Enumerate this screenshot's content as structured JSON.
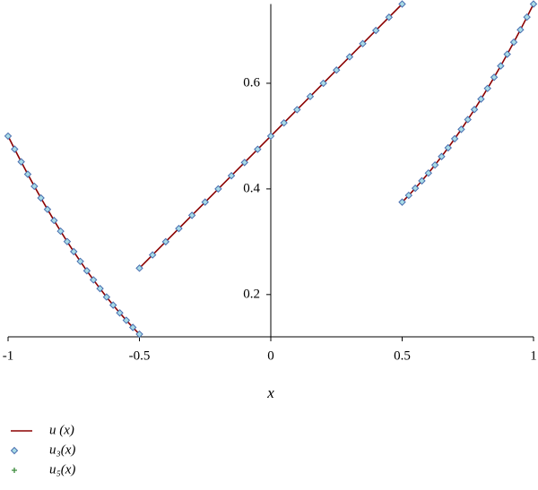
{
  "chart_data": {
    "type": "line",
    "xlabel": "x",
    "xlim": [
      -1,
      1
    ],
    "xticks": [
      -1,
      -0.5,
      0,
      0.5,
      1
    ],
    "ylim": [
      0.12,
      0.75
    ],
    "yticks": [
      0.2,
      0.4,
      0.6
    ],
    "x": [
      -1,
      -0.975,
      -0.95,
      -0.925,
      -0.9,
      -0.875,
      -0.85,
      -0.825,
      -0.8,
      -0.775,
      -0.75,
      -0.725,
      -0.7,
      -0.675,
      -0.65,
      -0.625,
      -0.6,
      -0.575,
      -0.55,
      -0.525,
      -0.5,
      -0.5,
      -0.5,
      -0.45,
      -0.4,
      -0.35,
      -0.3,
      -0.25,
      -0.2,
      -0.15,
      -0.1,
      -0.05,
      0,
      0.05,
      0.1,
      0.15,
      0.2,
      0.25,
      0.3,
      0.35,
      0.4,
      0.45,
      0.5,
      0.5,
      0.5,
      0.525,
      0.55,
      0.575,
      0.6,
      0.625,
      0.65,
      0.675,
      0.7,
      0.725,
      0.75,
      0.775,
      0.8,
      0.825,
      0.85,
      0.875,
      0.9,
      0.925,
      0.95,
      0.975,
      1
    ],
    "series": [
      {
        "name": "u (x)",
        "marker": "line",
        "color": "#8b0000",
        "values": [
          0.5,
          0.4753,
          0.4513,
          0.4278,
          0.405,
          0.3828,
          0.3613,
          0.3403,
          0.32,
          0.3003,
          0.2813,
          0.2628,
          0.245,
          0.2278,
          0.2113,
          0.1953,
          0.18,
          0.1653,
          0.1513,
          0.1378,
          0.125,
          null,
          0.25,
          0.275,
          0.3,
          0.325,
          0.35,
          0.375,
          0.4,
          0.425,
          0.45,
          0.475,
          0.5,
          0.525,
          0.55,
          0.575,
          0.6,
          0.625,
          0.65,
          0.675,
          0.7,
          0.725,
          0.75,
          null,
          0.375,
          0.3878,
          0.4013,
          0.4153,
          0.43,
          0.4453,
          0.4613,
          0.4778,
          0.495,
          0.5128,
          0.5313,
          0.5503,
          0.57,
          0.5903,
          0.6113,
          0.6328,
          0.655,
          0.6778,
          0.7013,
          0.7253,
          0.75
        ]
      },
      {
        "name": "u₃(x)",
        "marker": "diamond",
        "color": "#4a6fb0",
        "values": [
          0.5,
          0.4753,
          0.4513,
          0.4278,
          0.405,
          0.3828,
          0.3613,
          0.3403,
          0.32,
          0.3003,
          0.2813,
          0.2628,
          0.245,
          0.2278,
          0.2113,
          0.1953,
          0.18,
          0.1653,
          0.1513,
          0.1378,
          0.125,
          null,
          0.25,
          0.275,
          0.3,
          0.325,
          0.35,
          0.375,
          0.4,
          0.425,
          0.45,
          0.475,
          0.5,
          0.525,
          0.55,
          0.575,
          0.6,
          0.625,
          0.65,
          0.675,
          0.7,
          0.725,
          0.75,
          null,
          0.375,
          0.3878,
          0.4013,
          0.4153,
          0.43,
          0.4453,
          0.4613,
          0.4778,
          0.495,
          0.5128,
          0.5313,
          0.5503,
          0.57,
          0.5903,
          0.6113,
          0.6328,
          0.655,
          0.6778,
          0.7013,
          0.7253,
          0.75
        ]
      },
      {
        "name": "u₅(x)",
        "marker": "plus",
        "color": "#3a8a3a",
        "values": [
          0.5,
          0.4753,
          0.4513,
          0.4278,
          0.405,
          0.3828,
          0.3613,
          0.3403,
          0.32,
          0.3003,
          0.2813,
          0.2628,
          0.245,
          0.2278,
          0.2113,
          0.1953,
          0.18,
          0.1653,
          0.1513,
          0.1378,
          0.125,
          null,
          0.25,
          0.275,
          0.3,
          0.325,
          0.35,
          0.375,
          0.4,
          0.425,
          0.45,
          0.475,
          0.5,
          0.525,
          0.55,
          0.575,
          0.6,
          0.625,
          0.65,
          0.675,
          0.7,
          0.725,
          0.75,
          null,
          0.375,
          0.3878,
          0.4013,
          0.4153,
          0.43,
          0.4453,
          0.4613,
          0.4778,
          0.495,
          0.5128,
          0.5313,
          0.5503,
          0.57,
          0.5903,
          0.6113,
          0.6328,
          0.655,
          0.6778,
          0.7013,
          0.7253,
          0.75
        ]
      }
    ]
  }
}
